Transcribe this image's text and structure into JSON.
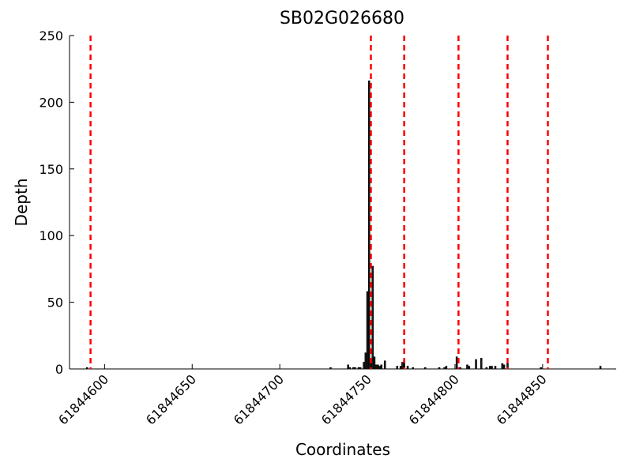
{
  "chart_data": {
    "type": "bar",
    "title": "SB02G026680",
    "x_label": "Coordinates",
    "y_label": "Depth",
    "x": [
      61844590,
      61844729,
      61844739,
      61844740,
      61844742,
      61844743,
      61844745,
      61844746,
      61844748,
      61844749,
      61844750,
      61844751,
      61844752,
      61844753,
      61844754,
      61844755,
      61844756,
      61844757,
      61844758,
      61844760,
      61844767,
      61844769,
      61844770,
      61844771,
      61844773,
      61844776,
      61844783,
      61844791,
      61844794,
      61844795,
      61844801,
      61844803,
      61844807,
      61844808,
      61844812,
      61844815,
      61844818,
      61844820,
      61844821,
      61844823,
      61844827,
      61844828,
      61844830,
      61844849,
      61844883
    ],
    "values": [
      1,
      1,
      3,
      1,
      1,
      1,
      1,
      1,
      5,
      12,
      58,
      216,
      7,
      77,
      9,
      3,
      3,
      2,
      3,
      6,
      2,
      2,
      5,
      6,
      2,
      1,
      1,
      1,
      1,
      2,
      9,
      1,
      3,
      2,
      7,
      8,
      1,
      2,
      2,
      2,
      4,
      3,
      4,
      1,
      2
    ],
    "color": "#222222",
    "vlines": [
      61844592,
      61844752,
      61844771,
      61844802,
      61844830,
      61844853
    ],
    "vline_color": "#ff0000",
    "xlim": [
      61844580,
      61844892
    ],
    "xticks": [
      61844600,
      61844650,
      61844700,
      61844750,
      61844800,
      61844850
    ],
    "ylim": [
      0,
      250
    ],
    "yticks": [
      0,
      50,
      100,
      150,
      200,
      250
    ]
  }
}
